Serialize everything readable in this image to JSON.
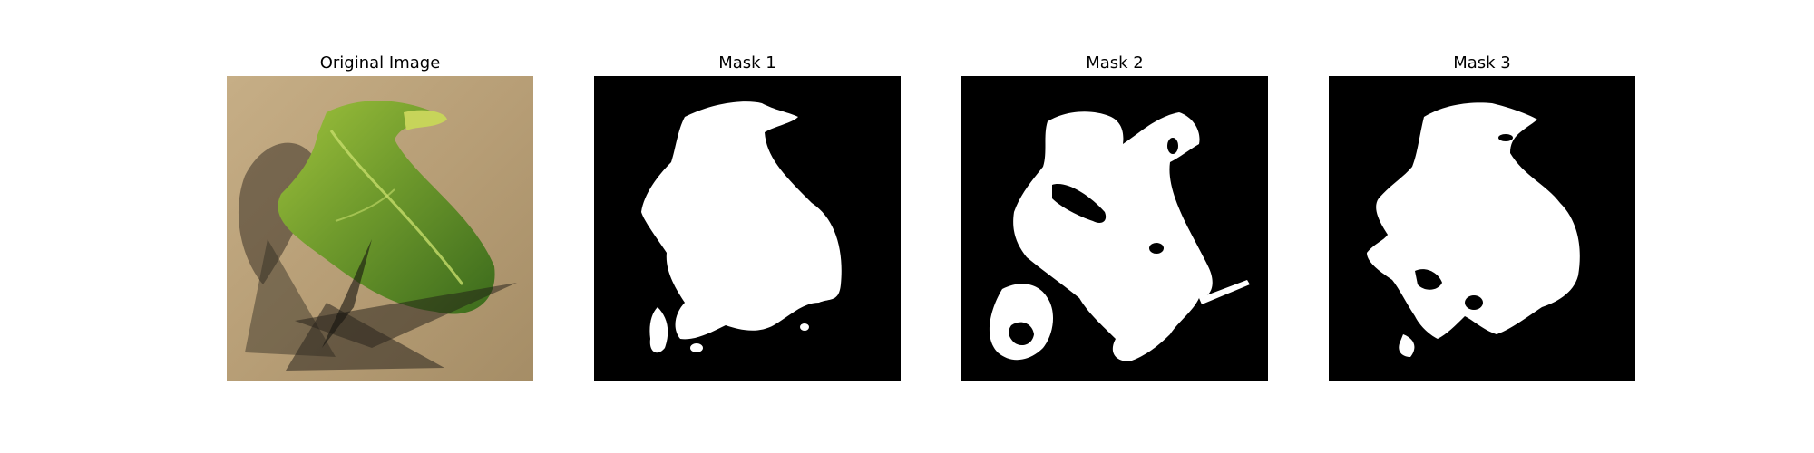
{
  "figure": {
    "panels": [
      {
        "title": "Original Image",
        "kind": "photo",
        "subject": "leaf-on-cardboard"
      },
      {
        "title": "Mask 1",
        "kind": "mask"
      },
      {
        "title": "Mask 2",
        "kind": "mask"
      },
      {
        "title": "Mask 3",
        "kind": "mask"
      }
    ]
  },
  "colors": {
    "mask_background": "#000000",
    "mask_foreground": "#ffffff",
    "cardboard": "#b89f78",
    "leaf_light": "#a9c84a",
    "leaf_dark": "#3f6b1f",
    "shadow": "#3a3226"
  }
}
